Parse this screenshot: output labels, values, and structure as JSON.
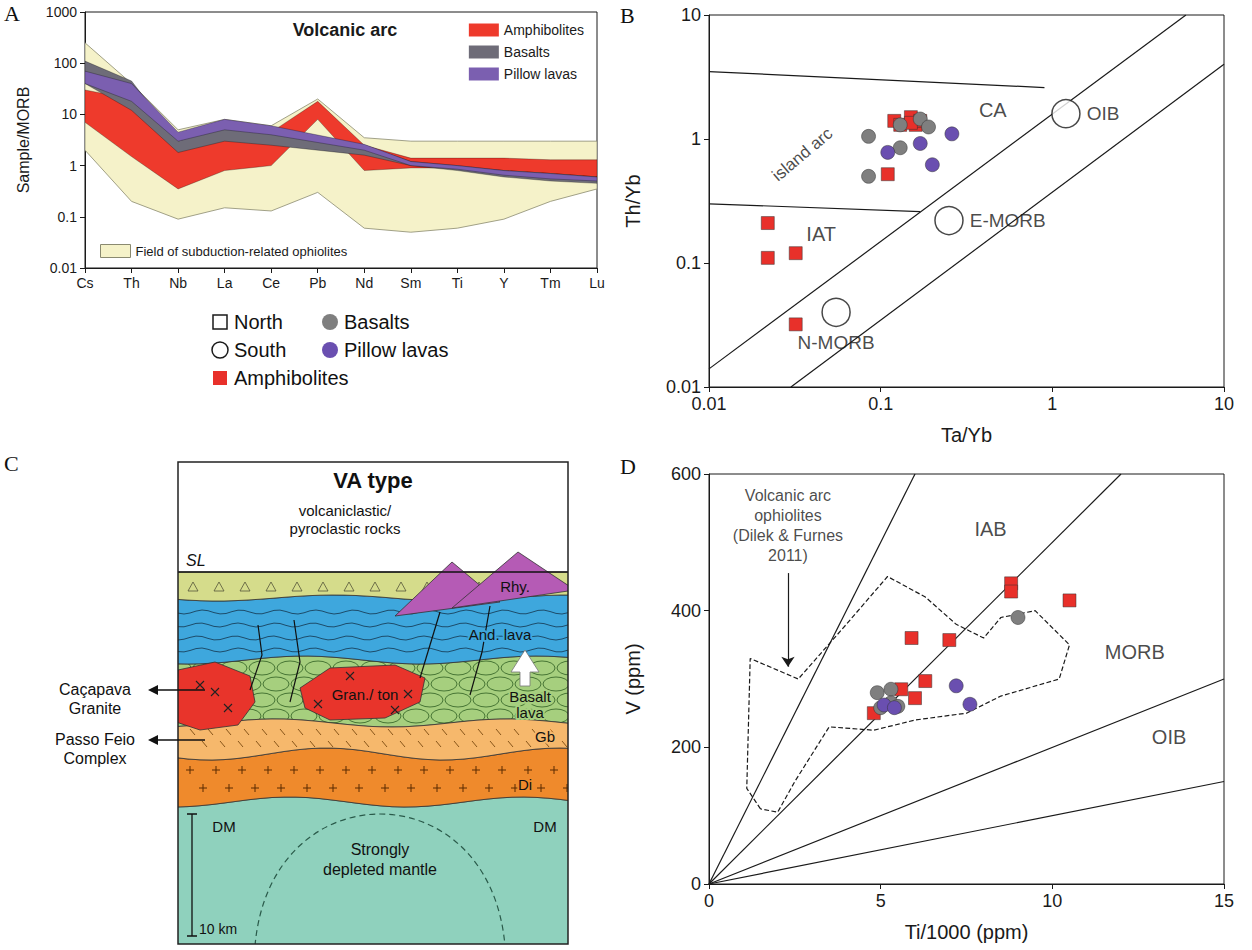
{
  "chart_data": [
    {
      "panel_label": "A",
      "type": "band",
      "title": "Volcanic arc",
      "y_label": "Sample/MORB",
      "categories": [
        "Cs",
        "Th",
        "Nb",
        "La",
        "Ce",
        "Pb",
        "Nd",
        "Sm",
        "Ti",
        "Y",
        "Tm",
        "Lu"
      ],
      "log": "y",
      "ylim": [
        0.01,
        1000
      ],
      "yticks": [
        0.01,
        0.1,
        1,
        10,
        100,
        1000
      ],
      "grid": false,
      "legend": "top-right",
      "series": [
        {
          "name": "Amphibolites",
          "color": "#ee3a2c",
          "lower": [
            7,
            1.5,
            0.35,
            0.8,
            1,
            8,
            0.8,
            0.9,
            0.9,
            0.8,
            0.7,
            0.6
          ],
          "upper": [
            30,
            20,
            2,
            7,
            4.5,
            18,
            2.5,
            1.4,
            1.4,
            1.4,
            1.3,
            1.3
          ]
        },
        {
          "name": "Basalts",
          "color": "#6e6c78",
          "lower": [
            40,
            12,
            1.8,
            3,
            2.5,
            null,
            1.6,
            1,
            0.8,
            0.6,
            0.5,
            0.45
          ],
          "upper": [
            110,
            45,
            3,
            6,
            4.5,
            null,
            2.5,
            1.2,
            1,
            0.8,
            0.7,
            0.6
          ]
        },
        {
          "name": "Pillow lavas",
          "color": "#7b5fb0",
          "lower": [
            40,
            18,
            3,
            5,
            4,
            null,
            2,
            1,
            0.85,
            0.65,
            0.55,
            0.5
          ],
          "upper": [
            70,
            40,
            4.5,
            8,
            6,
            null,
            2.6,
            1.2,
            1,
            0.8,
            0.7,
            0.6
          ]
        }
      ],
      "field": {
        "name": "Field of subduction-related ophiolites",
        "color": "#f5f2c9",
        "lower": [
          2,
          0.2,
          0.09,
          0.15,
          0.13,
          0.3,
          0.06,
          0.05,
          0.06,
          0.09,
          0.2,
          0.35
        ],
        "upper": [
          250,
          40,
          5,
          8,
          6,
          20,
          3.5,
          3,
          3,
          3,
          3,
          3
        ]
      }
    },
    {
      "panel_label": "B",
      "type": "scatter",
      "x_label": "Ta/Yb",
      "y_label": "Th/Yb",
      "log": true,
      "xlim": [
        0.01,
        10
      ],
      "ylim": [
        0.01,
        10
      ],
      "xticks": [
        0.01,
        0.1,
        1,
        10
      ],
      "yticks": [
        0.01,
        0.1,
        1,
        10
      ],
      "grid": false,
      "series": [
        {
          "name": "Amphibolites",
          "color": "#e8302a",
          "marker": "square",
          "x": [
            0.022,
            0.022,
            0.032,
            0.032,
            0.11,
            0.12,
            0.13,
            0.15,
            0.16,
            0.17,
            0.15
          ],
          "y": [
            0.21,
            0.11,
            0.12,
            0.032,
            0.52,
            1.4,
            1.3,
            1.5,
            1.3,
            1.4,
            1.35
          ]
        },
        {
          "name": "Basalts",
          "color": "#7f7f7f",
          "marker": "circle",
          "x": [
            0.085,
            0.085,
            0.13,
            0.13,
            0.17,
            0.19
          ],
          "y": [
            1.05,
            0.5,
            0.85,
            1.3,
            1.45,
            1.25
          ]
        },
        {
          "name": "Pillow lavas",
          "color": "#6a4fb0",
          "marker": "circle",
          "x": [
            0.11,
            0.17,
            0.2,
            0.26
          ],
          "y": [
            0.78,
            0.92,
            0.62,
            1.1
          ]
        }
      ],
      "lines": [
        {
          "x": [
            0.01,
            6
          ],
          "y": [
            0.014,
            10
          ]
        },
        {
          "x": [
            0.03,
            10
          ],
          "y": [
            0.01,
            4
          ]
        },
        {
          "x": [
            0.01,
            0.9
          ],
          "y": [
            3.5,
            2.6
          ]
        },
        {
          "x": [
            0.01,
            0.17
          ],
          "y": [
            0.3,
            0.26
          ]
        }
      ],
      "reference_points": [
        {
          "label": "N-MORB",
          "x": 0.055,
          "y": 0.04
        },
        {
          "label": "E-MORB",
          "x": 0.25,
          "y": 0.22
        },
        {
          "label": "OIB",
          "x": 1.2,
          "y": 1.6
        }
      ],
      "annotations": [
        "CA",
        "IAT",
        "island arc"
      ]
    },
    {
      "panel_label": "D",
      "type": "scatter",
      "x_label": "Ti/1000 (ppm)",
      "y_label": "V (ppm)",
      "xlim": [
        0,
        15
      ],
      "ylim": [
        0,
        600
      ],
      "xticks": [
        0,
        5,
        10,
        15
      ],
      "yticks": [
        0,
        200,
        400,
        600
      ],
      "grid": false,
      "series": [
        {
          "name": "Amphibolites",
          "color": "#e8302a",
          "marker": "square",
          "x": [
            4.8,
            5.6,
            5.9,
            6.0,
            6.3,
            7.0,
            8.8,
            8.8,
            10.5
          ],
          "y": [
            250,
            285,
            360,
            272,
            297,
            357,
            440,
            428,
            415
          ]
        },
        {
          "name": "Basalts",
          "color": "#7f7f7f",
          "marker": "circle",
          "x": [
            4.9,
            5.0,
            5.3,
            5.3,
            5.5,
            9.0
          ],
          "y": [
            280,
            258,
            285,
            265,
            260,
            390
          ]
        },
        {
          "name": "Pillow lavas",
          "color": "#6a4fb0",
          "marker": "circle",
          "x": [
            5.1,
            5.4,
            7.2,
            7.6
          ],
          "y": [
            262,
            258,
            290,
            263
          ]
        }
      ],
      "lines": [
        {
          "x": [
            0,
            6
          ],
          "y": [
            0,
            600
          ]
        },
        {
          "x": [
            0,
            12
          ],
          "y": [
            0,
            600
          ]
        },
        {
          "x": [
            0,
            15
          ],
          "y": [
            0,
            300
          ]
        },
        {
          "x": [
            0,
            15
          ],
          "y": [
            0,
            150
          ]
        }
      ],
      "field": {
        "label": "Volcanic arc ophiolites (Dilek & Furnes 2011)",
        "x": [
          1.5,
          1.1,
          1.2,
          2.6,
          4.0,
          5.2,
          6.3,
          7.2,
          8.0,
          8.5,
          9.5,
          10.5,
          10.2,
          8.5,
          7.5,
          6.0,
          4.8,
          3.5,
          2.5,
          2.0
        ],
        "y": [
          110,
          140,
          330,
          300,
          380,
          450,
          420,
          380,
          360,
          390,
          400,
          350,
          300,
          275,
          250,
          240,
          225,
          230,
          150,
          105
        ]
      },
      "annotations": [
        "IAB",
        "MORB",
        "OIB"
      ]
    }
  ],
  "diagram": {
    "panel_label": "C",
    "title": "VA type",
    "labels": {
      "volcaniclastic": "volcaniclastic/ pyroclastic rocks",
      "sea_level": "SL",
      "rhyolite": "Rhy.",
      "andesite": "And. lava",
      "basalt": "Basalt lava",
      "granite_tonalite": "Gran./ ton",
      "gabbro": "Gb",
      "diorite": "Di",
      "mantle_left": "DM",
      "mantle_right": "DM",
      "mantle": "Strongly depleted mantle",
      "scale": "10 km"
    },
    "callouts": [
      "Caçapava Granite",
      "Passo Feio Complex"
    ]
  },
  "symbol_key": [
    {
      "label": "North",
      "marker": "square_open"
    },
    {
      "label": "South",
      "marker": "circle_open"
    },
    {
      "label": "Basalts",
      "marker": "circle",
      "color": "#7f7f7f"
    },
    {
      "label": "Pillow lavas",
      "marker": "circle",
      "color": "#6a4fb0"
    },
    {
      "label": "Amphibolites",
      "marker": "square",
      "color": "#e8302a"
    }
  ]
}
